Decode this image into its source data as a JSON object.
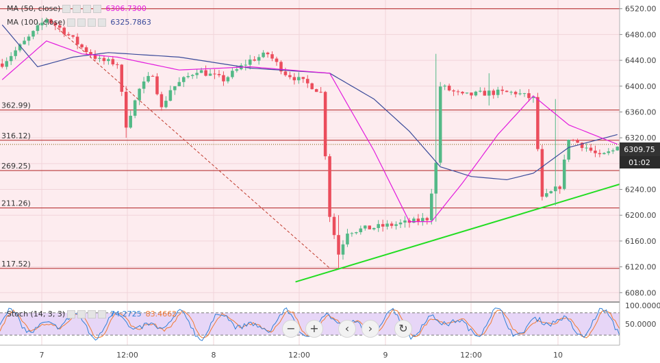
{
  "indicators": {
    "ma50": {
      "label": "MA (50, close)",
      "value": "6306.7300",
      "color": "#e21bdd"
    },
    "ma100": {
      "label": "MA (100, close)",
      "value": "6325.7863",
      "color": "#3a4a9a"
    },
    "stoch": {
      "label": "Stoch (14, 3, 3)",
      "k": "74.2725",
      "d": "83.4662",
      "k_color": "#2f7fd6",
      "d_color": "#f07a32"
    }
  },
  "price_badge": {
    "price": "6309.75",
    "countdown": "01:02"
  },
  "chart_data": {
    "type": "candlestick",
    "x_ticks": [
      "7",
      "12:00",
      "8",
      "12:00",
      "9",
      "12:00",
      "10"
    ],
    "y_ticks": [
      "6520.00",
      "6480.00",
      "6440.00",
      "6400.00",
      "6360.00",
      "6320.00",
      "6280.00",
      "6240.00",
      "6200.00",
      "6160.00",
      "6120.00",
      "6080.00"
    ],
    "ylim": [
      6075,
      6525
    ],
    "horizontal_levels": [
      {
        "value": 6520,
        "label": ""
      },
      {
        "value": 6362.99,
        "label": "362.99)"
      },
      {
        "value": 6316.12,
        "label": "316.12)"
      },
      {
        "value": 6269.25,
        "label": "269.25)"
      },
      {
        "value": 6211.26,
        "label": "211.26)"
      },
      {
        "value": 6117.52,
        "label": "117.52)"
      }
    ],
    "price_anchors": [
      [
        0,
        6435
      ],
      [
        6,
        6475
      ],
      [
        10,
        6505
      ],
      [
        14,
        6485
      ],
      [
        18,
        6460
      ],
      [
        22,
        6440
      ],
      [
        26,
        6435
      ],
      [
        28,
        6340
      ],
      [
        31,
        6395
      ],
      [
        34,
        6420
      ],
      [
        36,
        6365
      ],
      [
        38,
        6395
      ],
      [
        44,
        6425
      ],
      [
        50,
        6410
      ],
      [
        56,
        6440
      ],
      [
        60,
        6450
      ],
      [
        64,
        6420
      ],
      [
        67,
        6410
      ],
      [
        70,
        6400
      ],
      [
        72,
        6390
      ],
      [
        74,
        6200
      ],
      [
        76,
        6140
      ],
      [
        78,
        6175
      ],
      [
        83,
        6180
      ],
      [
        88,
        6185
      ],
      [
        93,
        6190
      ],
      [
        96,
        6195
      ],
      [
        98,
        6280
      ],
      [
        99,
        6400
      ],
      [
        104,
        6385
      ],
      [
        110,
        6390
      ],
      [
        116,
        6390
      ],
      [
        120,
        6380
      ],
      [
        122,
        6225
      ],
      [
        126,
        6245
      ],
      [
        128,
        6320
      ],
      [
        132,
        6305
      ],
      [
        135,
        6290
      ],
      [
        138,
        6300
      ],
      [
        139,
        6310
      ]
    ],
    "spikes": [
      {
        "i": 98,
        "high": 6450,
        "low": 6190
      },
      {
        "i": 28,
        "high": 6400,
        "low": 6320
      },
      {
        "i": 110,
        "high": 6420,
        "low": 6370
      },
      {
        "i": 125,
        "high": 6380,
        "low": 6215
      },
      {
        "i": 76,
        "high": 6200,
        "low": 6118
      }
    ],
    "candle_count": 140,
    "ma50": [
      [
        0,
        6410
      ],
      [
        10,
        6470
      ],
      [
        18,
        6450
      ],
      [
        26,
        6445
      ],
      [
        40,
        6425
      ],
      [
        56,
        6430
      ],
      [
        74,
        6420
      ],
      [
        84,
        6300
      ],
      [
        92,
        6190
      ],
      [
        97,
        6190
      ],
      [
        104,
        6250
      ],
      [
        112,
        6325
      ],
      [
        120,
        6385
      ],
      [
        128,
        6340
      ],
      [
        139,
        6310
      ]
    ],
    "ma100": [
      [
        0,
        6495
      ],
      [
        8,
        6430
      ],
      [
        16,
        6445
      ],
      [
        24,
        6452
      ],
      [
        40,
        6445
      ],
      [
        56,
        6428
      ],
      [
        74,
        6420
      ],
      [
        84,
        6380
      ],
      [
        92,
        6330
      ],
      [
        99,
        6275
      ],
      [
        106,
        6260
      ],
      [
        114,
        6255
      ],
      [
        120,
        6265
      ],
      [
        128,
        6305
      ],
      [
        139,
        6325
      ]
    ],
    "trendline_up": {
      "from": [
        74,
        6120
      ],
      "to": [
        143,
        6248
      ],
      "color": "#22dd22"
    },
    "trendline_down": {
      "from": [
        10,
        6505
      ],
      "to": [
        74,
        6118
      ],
      "color": "#c0392b"
    },
    "stoch_ylim": [
      0,
      100
    ],
    "stoch_ticks": [
      "100.0000",
      "50.0000"
    ],
    "stoch_band": [
      20,
      80
    ]
  }
}
